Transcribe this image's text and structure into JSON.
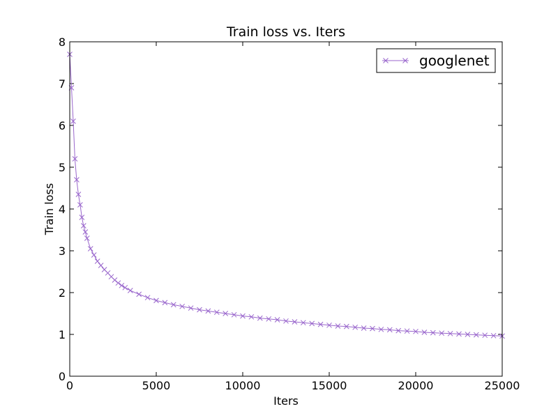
{
  "chart_data": {
    "type": "line",
    "title": "Train loss  vs. Iters",
    "xlabel": "Iters",
    "ylabel": "Train loss",
    "xlim": [
      0,
      25000
    ],
    "ylim": [
      0,
      8
    ],
    "xticks": [
      0,
      5000,
      10000,
      15000,
      20000,
      25000
    ],
    "xtick_labels": [
      "0",
      "5000",
      "10000",
      "15000",
      "20000",
      "25000"
    ],
    "yticks": [
      0,
      1,
      2,
      3,
      4,
      5,
      6,
      7,
      8
    ],
    "ytick_labels": [
      "0",
      "1",
      "2",
      "3",
      "4",
      "5",
      "6",
      "7",
      "8"
    ],
    "grid": false,
    "legend_position": "top-right",
    "series": [
      {
        "name": "googlenet",
        "color": "#9966cc",
        "marker": "x",
        "x": [
          0,
          100,
          200,
          300,
          400,
          500,
          600,
          700,
          800,
          900,
          1000,
          1200,
          1400,
          1600,
          1800,
          2000,
          2200,
          2400,
          2600,
          2800,
          3000,
          3200,
          3500,
          4000,
          4500,
          5000,
          5500,
          6000,
          6500,
          7000,
          7500,
          8000,
          8500,
          9000,
          9500,
          10000,
          10500,
          11000,
          11500,
          12000,
          12500,
          13000,
          13500,
          14000,
          14500,
          15000,
          15500,
          16000,
          16500,
          17000,
          17500,
          18000,
          18500,
          19000,
          19500,
          20000,
          20500,
          21000,
          21500,
          22000,
          22500,
          23000,
          23500,
          24000,
          24500,
          25000
        ],
        "y": [
          7.7,
          6.9,
          6.1,
          5.2,
          4.7,
          4.35,
          4.1,
          3.8,
          3.6,
          3.45,
          3.3,
          3.05,
          2.9,
          2.75,
          2.65,
          2.55,
          2.47,
          2.38,
          2.3,
          2.23,
          2.17,
          2.12,
          2.05,
          1.96,
          1.88,
          1.81,
          1.76,
          1.71,
          1.67,
          1.63,
          1.59,
          1.56,
          1.53,
          1.5,
          1.47,
          1.44,
          1.42,
          1.39,
          1.37,
          1.35,
          1.32,
          1.3,
          1.28,
          1.26,
          1.24,
          1.22,
          1.2,
          1.19,
          1.17,
          1.15,
          1.14,
          1.12,
          1.11,
          1.09,
          1.08,
          1.07,
          1.05,
          1.04,
          1.03,
          1.02,
          1.01,
          1.0,
          0.99,
          0.98,
          0.97,
          0.96
        ]
      }
    ]
  }
}
